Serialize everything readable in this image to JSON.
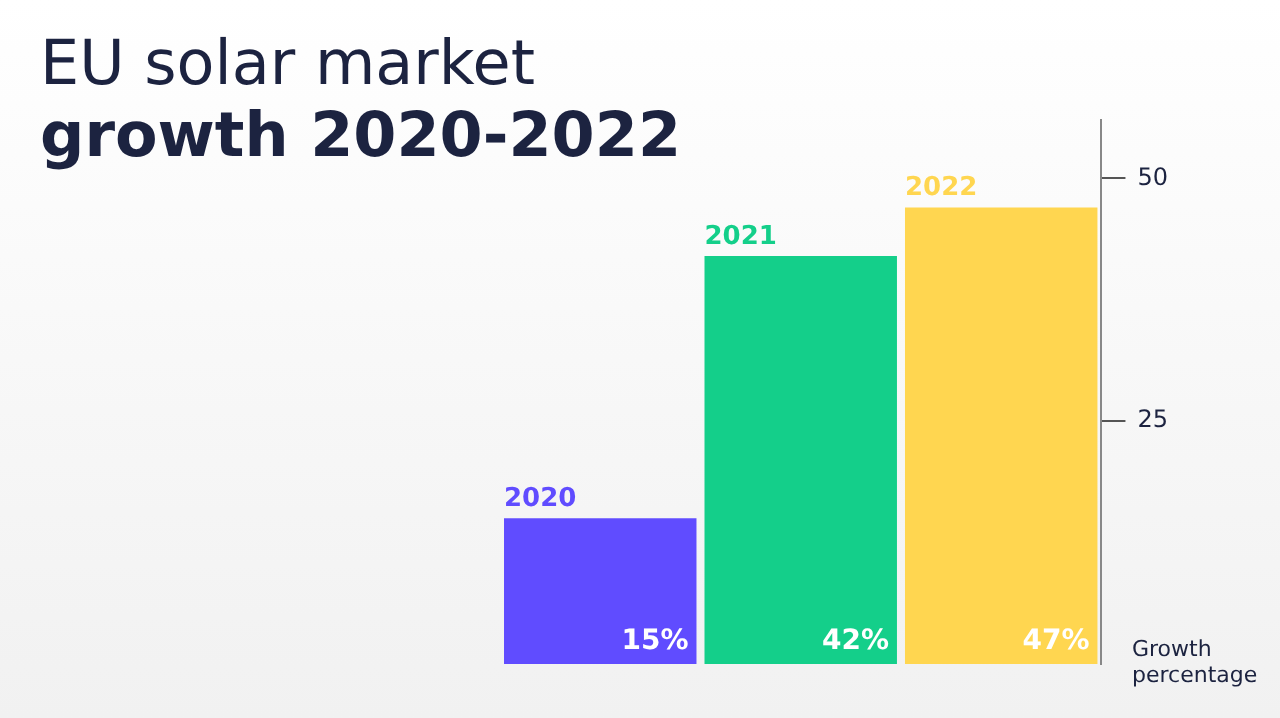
{
  "chart_data": {
    "type": "bar",
    "title": "EU solar market",
    "subtitle": "growth 2020-2022",
    "ylabel": "Growth percentage",
    "categories": [
      "2020",
      "2021",
      "2022"
    ],
    "values": [
      15,
      42,
      47
    ],
    "colors": [
      "#604cff",
      "#14cf8a",
      "#ffd650"
    ],
    "value_labels": [
      "15%",
      "42%",
      "47%"
    ],
    "ylim": [
      0,
      56
    ],
    "yticks": [
      25,
      50
    ],
    "grid": false,
    "legend": false
  }
}
